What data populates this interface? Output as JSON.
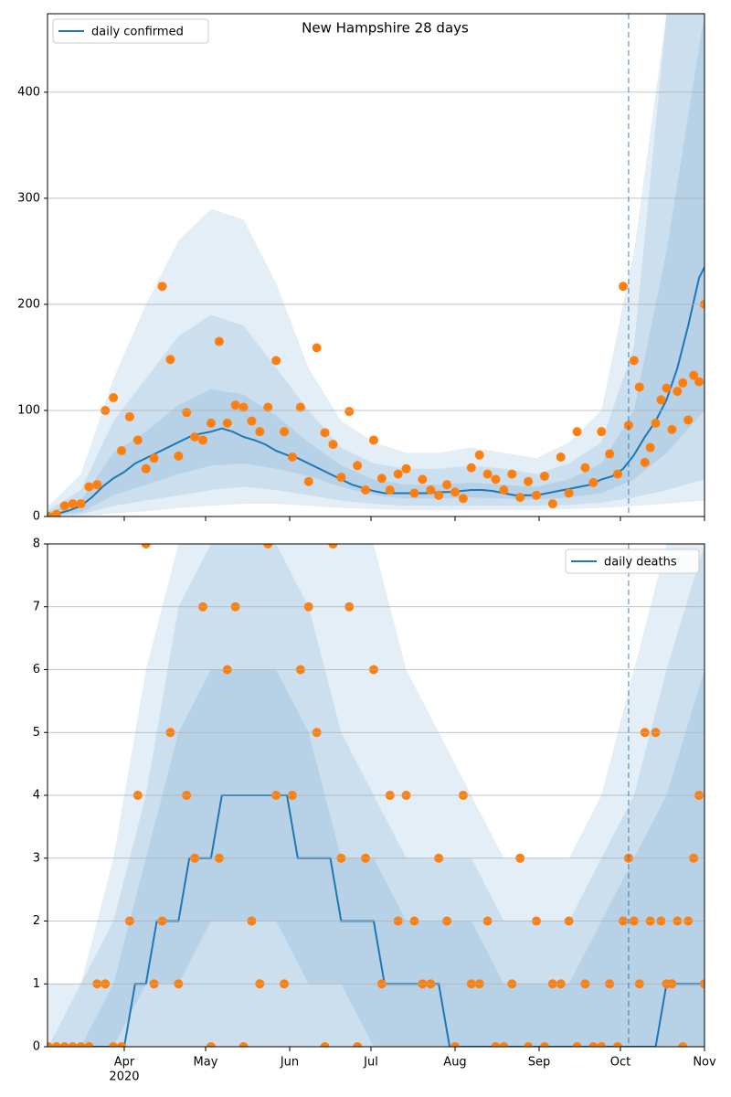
{
  "chart_data": [
    {
      "type": "line",
      "title": "New Hampshire 28 days",
      "legend": "upper left",
      "xlim": [
        62.7,
        305
      ],
      "ylim": [
        0,
        474
      ],
      "yticks": [
        0,
        100,
        200,
        300,
        400
      ],
      "grid": true,
      "vline_x": 277,
      "band_color": "#1f77b4",
      "band_x": [
        63,
        75,
        87,
        99,
        111,
        123,
        135,
        147,
        159,
        171,
        183,
        195,
        207,
        219,
        231,
        243,
        255,
        267,
        279,
        291,
        305
      ],
      "bands": [
        {
          "lower": [
            0,
            0,
            3,
            5,
            8,
            10,
            12,
            12,
            10,
            8,
            7,
            6,
            6,
            6,
            6,
            6,
            7,
            8,
            10,
            12,
            15
          ],
          "upper": [
            10,
            40,
            130,
            200,
            260,
            290,
            280,
            220,
            140,
            90,
            70,
            60,
            60,
            65,
            60,
            55,
            70,
            100,
            250,
            474,
            474
          ]
        },
        {
          "lower": [
            0,
            2,
            10,
            15,
            20,
            25,
            28,
            25,
            20,
            15,
            12,
            10,
            10,
            10,
            10,
            10,
            11,
            13,
            18,
            25,
            35
          ],
          "upper": [
            6,
            25,
            90,
            130,
            170,
            190,
            180,
            140,
            100,
            65,
            50,
            45,
            45,
            48,
            45,
            40,
            50,
            70,
            160,
            474,
            474
          ]
        },
        {
          "lower": [
            1,
            4,
            20,
            30,
            40,
            48,
            50,
            45,
            38,
            28,
            20,
            17,
            17,
            18,
            17,
            16,
            18,
            22,
            35,
            60,
            100
          ],
          "upper": [
            4,
            15,
            60,
            80,
            105,
            120,
            115,
            95,
            70,
            48,
            35,
            30,
            30,
            32,
            30,
            28,
            35,
            50,
            100,
            250,
            474
          ]
        }
      ],
      "series": [
        {
          "name": "daily confirmed",
          "color": "#1f77b4",
          "kind": "line",
          "x": [
            63,
            67,
            71,
            75,
            79,
            83,
            87,
            91,
            95,
            99,
            103,
            107,
            111,
            115,
            119,
            123,
            127,
            131,
            135,
            139,
            143,
            147,
            151,
            155,
            159,
            163,
            167,
            171,
            175,
            179,
            183,
            187,
            191,
            195,
            199,
            203,
            207,
            211,
            215,
            219,
            223,
            227,
            231,
            235,
            239,
            243,
            247,
            251,
            255,
            259,
            263,
            267,
            271,
            275,
            279,
            283,
            287,
            291,
            295,
            299,
            303,
            305
          ],
          "values": [
            2,
            3,
            6,
            10,
            18,
            28,
            36,
            42,
            50,
            55,
            60,
            65,
            70,
            75,
            78,
            80,
            83,
            80,
            75,
            72,
            68,
            62,
            58,
            55,
            50,
            45,
            40,
            35,
            30,
            27,
            24,
            22,
            22,
            22,
            22,
            22,
            23,
            23,
            24,
            25,
            25,
            24,
            22,
            20,
            20,
            20,
            22,
            24,
            26,
            28,
            30,
            35,
            38,
            45,
            58,
            75,
            90,
            110,
            140,
            180,
            225,
            235
          ]
        },
        {
          "color": "#ff7f0e",
          "kind": "scatter",
          "x": [
            63,
            66,
            69,
            72,
            75,
            78,
            81,
            84,
            87,
            90,
            93,
            96,
            99,
            102,
            105,
            108,
            111,
            114,
            117,
            120,
            123,
            126,
            129,
            132,
            135,
            138,
            141,
            144,
            147,
            150,
            153,
            156,
            159,
            162,
            165,
            168,
            171,
            174,
            177,
            180,
            183,
            186,
            189,
            192,
            195,
            198,
            201,
            204,
            207,
            210,
            213,
            216,
            219,
            222,
            225,
            228,
            231,
            234,
            237,
            240,
            243,
            246,
            249,
            252,
            255,
            258,
            261,
            264,
            267,
            270,
            273,
            275,
            277,
            279,
            281,
            283,
            285,
            287,
            289,
            291,
            293,
            295,
            297,
            299,
            301,
            303,
            305
          ],
          "values": [
            0,
            2,
            10,
            12,
            12,
            28,
            30,
            100,
            112,
            62,
            94,
            72,
            45,
            55,
            217,
            148,
            57,
            98,
            75,
            72,
            88,
            165,
            88,
            105,
            103,
            90,
            80,
            103,
            147,
            80,
            56,
            103,
            33,
            159,
            79,
            68,
            37,
            99,
            48,
            25,
            72,
            36,
            25,
            40,
            45,
            22,
            35,
            25,
            20,
            30,
            23,
            17,
            46,
            58,
            40,
            35,
            25,
            40,
            18,
            33,
            20,
            38,
            12,
            56,
            22,
            80,
            46,
            32,
            80,
            59,
            40,
            217,
            86,
            147,
            122,
            51,
            65,
            88,
            110,
            121,
            82,
            118,
            126,
            91,
            133,
            127,
            200
          ]
        }
      ]
    },
    {
      "type": "line",
      "legend": "upper right",
      "xlim": [
        62.7,
        305
      ],
      "ylim": [
        0,
        8
      ],
      "yticks": [
        0,
        1,
        2,
        3,
        4,
        5,
        6,
        7,
        8
      ],
      "grid": true,
      "vline_x": 277,
      "xticks": [
        {
          "value": 91,
          "label": "Apr"
        },
        {
          "value": 121,
          "label": "May"
        },
        {
          "value": 152,
          "label": "Jun"
        },
        {
          "value": 182,
          "label": "Jul"
        },
        {
          "value": 213,
          "label": "Aug"
        },
        {
          "value": 244,
          "label": "Sep"
        },
        {
          "value": 274,
          "label": "Oct"
        },
        {
          "value": 305,
          "label": "Nov"
        }
      ],
      "year_label": "2020",
      "band_color": "#1f77b4",
      "band_x": [
        63,
        75,
        87,
        99,
        111,
        123,
        135,
        147,
        159,
        171,
        183,
        195,
        207,
        219,
        231,
        243,
        255,
        267,
        279,
        291,
        305
      ],
      "bands": [
        {
          "lower": [
            0,
            0,
            0,
            0,
            0,
            0,
            0,
            0,
            0,
            0,
            0,
            0,
            0,
            0,
            0,
            0,
            0,
            0,
            0,
            0,
            0
          ],
          "upper": [
            1,
            1,
            3,
            6,
            8,
            8,
            8,
            8,
            8,
            8,
            8,
            6,
            5,
            4,
            3,
            3,
            3,
            4,
            6,
            8,
            8
          ]
        },
        {
          "lower": [
            0,
            0,
            0,
            0,
            0,
            0,
            0,
            0,
            0,
            0,
            0,
            0,
            0,
            0,
            0,
            0,
            0,
            0,
            0,
            0,
            0
          ],
          "upper": [
            0,
            1,
            2,
            4,
            7,
            8,
            8,
            8,
            7,
            5,
            4,
            3,
            3,
            3,
            2,
            2,
            2,
            3,
            4,
            6,
            8
          ]
        },
        {
          "lower": [
            0,
            0,
            0,
            1,
            1,
            2,
            2,
            2,
            1,
            1,
            0,
            0,
            0,
            0,
            0,
            0,
            0,
            0,
            0,
            0,
            0
          ],
          "upper": [
            0,
            0,
            1,
            3,
            5,
            6,
            6,
            6,
            5,
            3,
            3,
            2,
            2,
            2,
            1,
            1,
            1,
            2,
            3,
            4,
            6
          ]
        }
      ],
      "series": [
        {
          "name": "daily deaths",
          "color": "#1f77b4",
          "kind": "line",
          "x": [
            63,
            67,
            71,
            75,
            79,
            83,
            87,
            91,
            95,
            99,
            103,
            107,
            111,
            115,
            119,
            123,
            127,
            131,
            135,
            139,
            143,
            147,
            151,
            155,
            159,
            163,
            167,
            171,
            175,
            179,
            183,
            187,
            191,
            195,
            199,
            203,
            207,
            211,
            215,
            219,
            223,
            227,
            231,
            235,
            239,
            243,
            247,
            251,
            255,
            259,
            263,
            267,
            271,
            275,
            279,
            283,
            287,
            291,
            295,
            299,
            303,
            305
          ],
          "values": [
            0,
            0,
            0,
            0,
            0,
            0,
            0,
            0,
            1,
            1,
            2,
            2,
            2,
            3,
            3,
            3,
            4,
            4,
            4,
            4,
            4,
            4,
            4,
            3,
            3,
            3,
            3,
            2,
            2,
            2,
            2,
            1,
            1,
            1,
            1,
            1,
            1,
            0,
            0,
            0,
            0,
            0,
            0,
            0,
            0,
            0,
            0,
            0,
            0,
            0,
            0,
            0,
            0,
            0,
            0,
            0,
            0,
            1,
            1,
            1,
            1,
            1
          ]
        },
        {
          "color": "#ff7f0e",
          "kind": "scatter",
          "x": [
            63,
            66,
            69,
            72,
            75,
            78,
            81,
            84,
            87,
            90,
            93,
            96,
            99,
            102,
            105,
            108,
            111,
            114,
            117,
            120,
            123,
            126,
            129,
            132,
            135,
            138,
            141,
            144,
            147,
            150,
            153,
            156,
            159,
            162,
            165,
            168,
            171,
            174,
            177,
            180,
            183,
            186,
            189,
            192,
            195,
            198,
            201,
            204,
            207,
            210,
            213,
            216,
            219,
            222,
            225,
            228,
            231,
            234,
            237,
            240,
            243,
            246,
            249,
            252,
            255,
            258,
            261,
            264,
            267,
            270,
            273,
            275,
            277,
            279,
            281,
            283,
            285,
            287,
            289,
            291,
            293,
            295,
            297,
            299,
            301,
            303,
            305
          ],
          "values": [
            0,
            0,
            0,
            0,
            0,
            0,
            1,
            1,
            0,
            0,
            2,
            4,
            8,
            1,
            2,
            5,
            1,
            4,
            3,
            7,
            0,
            3,
            6,
            7,
            0,
            2,
            1,
            8,
            4,
            1,
            4,
            6,
            7,
            5,
            0,
            8,
            3,
            7,
            0,
            3,
            6,
            1,
            4,
            2,
            4,
            2,
            1,
            1,
            3,
            2,
            0,
            4,
            1,
            1,
            2,
            0,
            0,
            1,
            3,
            0,
            2,
            0,
            1,
            1,
            2,
            0,
            1,
            0,
            0,
            1,
            0,
            2,
            3,
            2,
            1,
            5,
            2,
            5,
            2,
            1,
            1,
            2,
            0,
            2,
            3,
            4,
            1
          ]
        }
      ]
    }
  ]
}
